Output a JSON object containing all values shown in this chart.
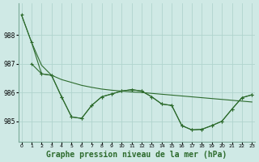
{
  "background_color": "#cfe9e5",
  "plot_bg_color": "#cfe9e5",
  "grid_color": "#b0d4ce",
  "line_color": "#2d6b2d",
  "title": "Graphe pression niveau de la mer (hPa)",
  "title_fontsize": 7,
  "x_ticks": [
    0,
    1,
    2,
    3,
    4,
    5,
    6,
    7,
    8,
    9,
    10,
    11,
    12,
    13,
    14,
    15,
    16,
    17,
    18,
    19,
    20,
    21,
    22,
    23
  ],
  "y_ticks": [
    985,
    986,
    987,
    988
  ],
  "ylim": [
    984.3,
    989.1
  ],
  "xlim": [
    -0.3,
    23.3
  ],
  "line1_x": [
    0,
    1,
    2,
    3,
    4,
    5,
    6,
    7,
    8,
    9,
    10,
    11,
    12,
    13,
    14,
    15,
    16,
    17,
    18,
    19,
    20,
    21,
    22,
    23
  ],
  "line1_y": [
    988.7,
    987.75,
    986.95,
    986.6,
    986.45,
    986.35,
    986.25,
    986.18,
    986.12,
    986.08,
    986.05,
    986.02,
    986.0,
    985.97,
    985.94,
    985.91,
    985.88,
    985.85,
    985.82,
    985.79,
    985.76,
    985.73,
    985.7,
    985.67
  ],
  "line2_x": [
    0,
    1,
    2,
    3,
    4,
    5,
    6,
    7,
    8,
    9,
    10,
    11,
    12,
    13,
    14,
    15,
    16,
    17,
    18,
    19,
    20,
    21,
    22,
    23
  ],
  "line2_y": [
    988.7,
    987.75,
    986.65,
    986.6,
    985.85,
    985.15,
    985.1,
    985.55,
    985.85,
    985.95,
    986.05,
    986.1,
    986.05,
    985.85,
    985.6,
    985.55,
    984.85,
    984.7,
    984.72,
    984.85,
    985.0,
    985.42,
    985.82,
    985.92
  ],
  "line3_x": [
    1,
    2,
    3,
    4,
    5,
    6,
    7,
    8,
    9,
    10,
    11,
    12,
    13,
    14,
    15,
    16,
    17,
    18,
    19,
    20,
    21,
    22,
    23
  ],
  "line3_y": [
    987.0,
    986.65,
    986.6,
    985.85,
    985.15,
    985.1,
    985.55,
    985.85,
    985.95,
    986.05,
    986.1,
    986.05,
    985.85,
    985.6,
    985.55,
    984.85,
    984.7,
    984.72,
    984.85,
    985.0,
    985.42,
    985.82,
    985.92
  ]
}
